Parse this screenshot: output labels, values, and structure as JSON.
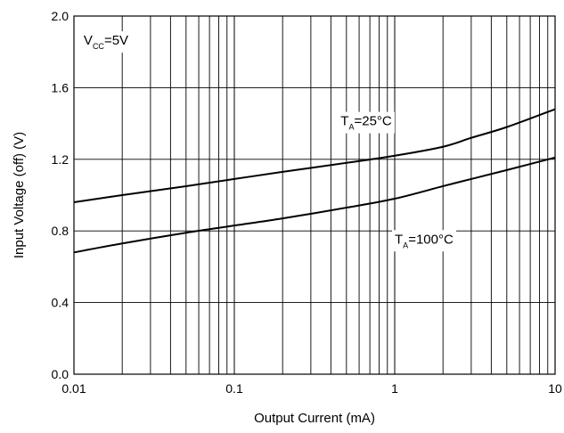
{
  "chart_data": {
    "type": "line",
    "title": "",
    "xlabel": "Output Current (mA)",
    "ylabel": "Input Voltage (off) (V)",
    "x_scale": "log",
    "xlim": [
      0.01,
      10
    ],
    "ylim": [
      0.0,
      2.0
    ],
    "grid": true,
    "x_ticks": [
      {
        "value": 0.01,
        "label": "0.01"
      },
      {
        "value": 0.1,
        "label": "0.1"
      },
      {
        "value": 1,
        "label": "1"
      },
      {
        "value": 10,
        "label": "10"
      }
    ],
    "y_ticks": [
      {
        "value": 0.0,
        "label": "0.0"
      },
      {
        "value": 0.4,
        "label": "0.4"
      },
      {
        "value": 0.8,
        "label": "0.8"
      },
      {
        "value": 1.2,
        "label": "1.2"
      },
      {
        "value": 1.6,
        "label": "1.6"
      },
      {
        "value": 2.0,
        "label": "2.0"
      }
    ],
    "series": [
      {
        "name": "TA=25°C",
        "x": [
          0.01,
          0.02,
          0.05,
          0.1,
          0.2,
          0.5,
          1,
          2,
          3,
          5,
          10
        ],
        "y": [
          0.96,
          1.0,
          1.05,
          1.09,
          1.13,
          1.18,
          1.22,
          1.27,
          1.32,
          1.38,
          1.48
        ]
      },
      {
        "name": "TA=100°C",
        "x": [
          0.01,
          0.02,
          0.05,
          0.1,
          0.2,
          0.5,
          1,
          2,
          3,
          5,
          10
        ],
        "y": [
          0.68,
          0.73,
          0.79,
          0.83,
          0.87,
          0.93,
          0.98,
          1.05,
          1.09,
          1.14,
          1.21
        ]
      }
    ],
    "annotations": [
      {
        "main": "V",
        "sub": "CC",
        "rest": "=5V",
        "x": 0.0115,
        "y": 1.84
      },
      {
        "main": "T",
        "sub": "A",
        "rest": "=25°C",
        "x": 0.46,
        "y": 1.39
      },
      {
        "main": "T",
        "sub": "A",
        "rest": "=100°C",
        "x": 1.0,
        "y": 0.73
      }
    ],
    "line_color": "#000000"
  }
}
